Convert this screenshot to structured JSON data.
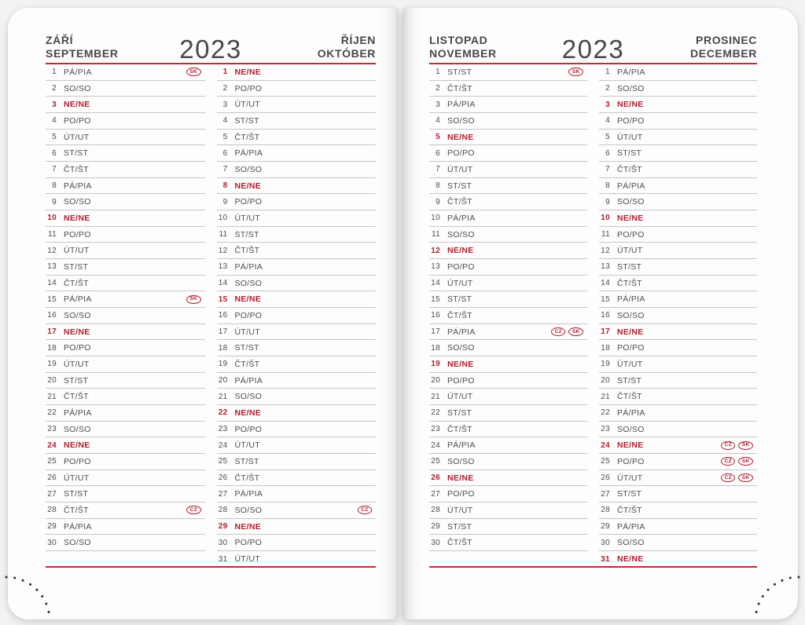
{
  "year": "2023",
  "colors": {
    "accent_red": "#b01e2e",
    "rule_gray": "#c6c6c8",
    "ink": "#4c4c54",
    "page": "#fdfdfd"
  },
  "badge_labels": {
    "cz": "CZ",
    "sk": "SK"
  },
  "pages": [
    {
      "side": "left",
      "months": [
        {
          "title_local": "ZÁŘÍ",
          "title_alt": "SEPTEMBER",
          "days": [
            {
              "n": "1",
              "d": "PÁ/PIA",
              "b": [
                "SK"
              ]
            },
            {
              "n": "2",
              "d": "SO/SO"
            },
            {
              "n": "3",
              "d": "NE/NE",
              "red": true
            },
            {
              "n": "4",
              "d": "PO/PO"
            },
            {
              "n": "5",
              "d": "ÚT/UT"
            },
            {
              "n": "6",
              "d": "ST/ST"
            },
            {
              "n": "7",
              "d": "ČT/ŠT"
            },
            {
              "n": "8",
              "d": "PÁ/PIA"
            },
            {
              "n": "9",
              "d": "SO/SO"
            },
            {
              "n": "10",
              "d": "NE/NE",
              "red": true
            },
            {
              "n": "11",
              "d": "PO/PO"
            },
            {
              "n": "12",
              "d": "ÚT/UT"
            },
            {
              "n": "13",
              "d": "ST/ST"
            },
            {
              "n": "14",
              "d": "ČT/ŠT"
            },
            {
              "n": "15",
              "d": "PÁ/PIA",
              "b": [
                "SK"
              ]
            },
            {
              "n": "16",
              "d": "SO/SO"
            },
            {
              "n": "17",
              "d": "NE/NE",
              "red": true
            },
            {
              "n": "18",
              "d": "PO/PO"
            },
            {
              "n": "19",
              "d": "ÚT/UT"
            },
            {
              "n": "20",
              "d": "ST/ST"
            },
            {
              "n": "21",
              "d": "ČT/ŠT"
            },
            {
              "n": "22",
              "d": "PÁ/PIA"
            },
            {
              "n": "23",
              "d": "SO/SO"
            },
            {
              "n": "24",
              "d": "NE/NE",
              "red": true
            },
            {
              "n": "25",
              "d": "PO/PO"
            },
            {
              "n": "26",
              "d": "ÚT/UT"
            },
            {
              "n": "27",
              "d": "ST/ST"
            },
            {
              "n": "28",
              "d": "ČT/ŠT",
              "b": [
                "CZ"
              ]
            },
            {
              "n": "29",
              "d": "PÁ/PIA"
            },
            {
              "n": "30",
              "d": "SO/SO"
            }
          ]
        },
        {
          "title_local": "ŘÍJEN",
          "title_alt": "OKTÓBER",
          "days": [
            {
              "n": "1",
              "d": "NE/NE",
              "red": true
            },
            {
              "n": "2",
              "d": "PO/PO"
            },
            {
              "n": "3",
              "d": "ÚT/UT"
            },
            {
              "n": "4",
              "d": "ST/ST"
            },
            {
              "n": "5",
              "d": "ČT/ŠT"
            },
            {
              "n": "6",
              "d": "PÁ/PIA"
            },
            {
              "n": "7",
              "d": "SO/SO"
            },
            {
              "n": "8",
              "d": "NE/NE",
              "red": true
            },
            {
              "n": "9",
              "d": "PO/PO"
            },
            {
              "n": "10",
              "d": "ÚT/UT"
            },
            {
              "n": "11",
              "d": "ST/ST"
            },
            {
              "n": "12",
              "d": "ČT/ŠT"
            },
            {
              "n": "13",
              "d": "PÁ/PIA"
            },
            {
              "n": "14",
              "d": "SO/SO"
            },
            {
              "n": "15",
              "d": "NE/NE",
              "red": true
            },
            {
              "n": "16",
              "d": "PO/PO"
            },
            {
              "n": "17",
              "d": "ÚT/UT"
            },
            {
              "n": "18",
              "d": "ST/ST"
            },
            {
              "n": "19",
              "d": "ČT/ŠT"
            },
            {
              "n": "20",
              "d": "PÁ/PIA"
            },
            {
              "n": "21",
              "d": "SO/SO"
            },
            {
              "n": "22",
              "d": "NE/NE",
              "red": true
            },
            {
              "n": "23",
              "d": "PO/PO"
            },
            {
              "n": "24",
              "d": "ÚT/UT"
            },
            {
              "n": "25",
              "d": "ST/ST"
            },
            {
              "n": "26",
              "d": "ČT/ŠT"
            },
            {
              "n": "27",
              "d": "PÁ/PIA"
            },
            {
              "n": "28",
              "d": "SO/SO",
              "b": [
                "CZ"
              ]
            },
            {
              "n": "29",
              "d": "NE/NE",
              "red": true
            },
            {
              "n": "30",
              "d": "PO/PO"
            },
            {
              "n": "31",
              "d": "ÚT/UT"
            }
          ]
        }
      ]
    },
    {
      "side": "right",
      "months": [
        {
          "title_local": "LISTOPAD",
          "title_alt": "NOVEMBER",
          "days": [
            {
              "n": "1",
              "d": "ST/ST",
              "b": [
                "SK"
              ]
            },
            {
              "n": "2",
              "d": "ČT/ŠT"
            },
            {
              "n": "3",
              "d": "PÁ/PIA"
            },
            {
              "n": "4",
              "d": "SO/SO"
            },
            {
              "n": "5",
              "d": "NE/NE",
              "red": true
            },
            {
              "n": "6",
              "d": "PO/PO"
            },
            {
              "n": "7",
              "d": "ÚT/UT"
            },
            {
              "n": "8",
              "d": "ST/ST"
            },
            {
              "n": "9",
              "d": "ČT/ŠT"
            },
            {
              "n": "10",
              "d": "PÁ/PIA"
            },
            {
              "n": "11",
              "d": "SO/SO"
            },
            {
              "n": "12",
              "d": "NE/NE",
              "red": true
            },
            {
              "n": "13",
              "d": "PO/PO"
            },
            {
              "n": "14",
              "d": "ÚT/UT"
            },
            {
              "n": "15",
              "d": "ST/ST"
            },
            {
              "n": "16",
              "d": "ČT/ŠT"
            },
            {
              "n": "17",
              "d": "PÁ/PIA",
              "b": [
                "CZ",
                "SK"
              ]
            },
            {
              "n": "18",
              "d": "SO/SO"
            },
            {
              "n": "19",
              "d": "NE/NE",
              "red": true
            },
            {
              "n": "20",
              "d": "PO/PO"
            },
            {
              "n": "21",
              "d": "ÚT/UT"
            },
            {
              "n": "22",
              "d": "ST/ST"
            },
            {
              "n": "23",
              "d": "ČT/ŠT"
            },
            {
              "n": "24",
              "d": "PÁ/PIA"
            },
            {
              "n": "25",
              "d": "SO/SO"
            },
            {
              "n": "26",
              "d": "NE/NE",
              "red": true
            },
            {
              "n": "27",
              "d": "PO/PO"
            },
            {
              "n": "28",
              "d": "ÚT/UT"
            },
            {
              "n": "29",
              "d": "ST/ST"
            },
            {
              "n": "30",
              "d": "ČT/ŠT"
            }
          ]
        },
        {
          "title_local": "PROSINEC",
          "title_alt": "DECEMBER",
          "days": [
            {
              "n": "1",
              "d": "PÁ/PIA"
            },
            {
              "n": "2",
              "d": "SO/SO"
            },
            {
              "n": "3",
              "d": "NE/NE",
              "red": true
            },
            {
              "n": "4",
              "d": "PO/PO"
            },
            {
              "n": "5",
              "d": "ÚT/UT"
            },
            {
              "n": "6",
              "d": "ST/ST"
            },
            {
              "n": "7",
              "d": "ČT/ŠT"
            },
            {
              "n": "8",
              "d": "PÁ/PIA"
            },
            {
              "n": "9",
              "d": "SO/SO"
            },
            {
              "n": "10",
              "d": "NE/NE",
              "red": true
            },
            {
              "n": "11",
              "d": "PO/PO"
            },
            {
              "n": "12",
              "d": "ÚT/UT"
            },
            {
              "n": "13",
              "d": "ST/ST"
            },
            {
              "n": "14",
              "d": "ČT/ŠT"
            },
            {
              "n": "15",
              "d": "PÁ/PIA"
            },
            {
              "n": "16",
              "d": "SO/SO"
            },
            {
              "n": "17",
              "d": "NE/NE",
              "red": true
            },
            {
              "n": "18",
              "d": "PO/PO"
            },
            {
              "n": "19",
              "d": "ÚT/UT"
            },
            {
              "n": "20",
              "d": "ST/ST"
            },
            {
              "n": "21",
              "d": "ČT/ŠT"
            },
            {
              "n": "22",
              "d": "PÁ/PIA"
            },
            {
              "n": "23",
              "d": "SO/SO"
            },
            {
              "n": "24",
              "d": "NE/NE",
              "red": true,
              "b": [
                "CZ",
                "SK"
              ]
            },
            {
              "n": "25",
              "d": "PO/PO",
              "b": [
                "CZ",
                "SK"
              ]
            },
            {
              "n": "26",
              "d": "ÚT/UT",
              "b": [
                "CZ",
                "SK"
              ]
            },
            {
              "n": "27",
              "d": "ST/ST"
            },
            {
              "n": "28",
              "d": "ČT/ŠT"
            },
            {
              "n": "29",
              "d": "PÁ/PIA"
            },
            {
              "n": "30",
              "d": "SO/SO"
            },
            {
              "n": "31",
              "d": "NE/NE",
              "red": true
            }
          ]
        }
      ]
    }
  ]
}
